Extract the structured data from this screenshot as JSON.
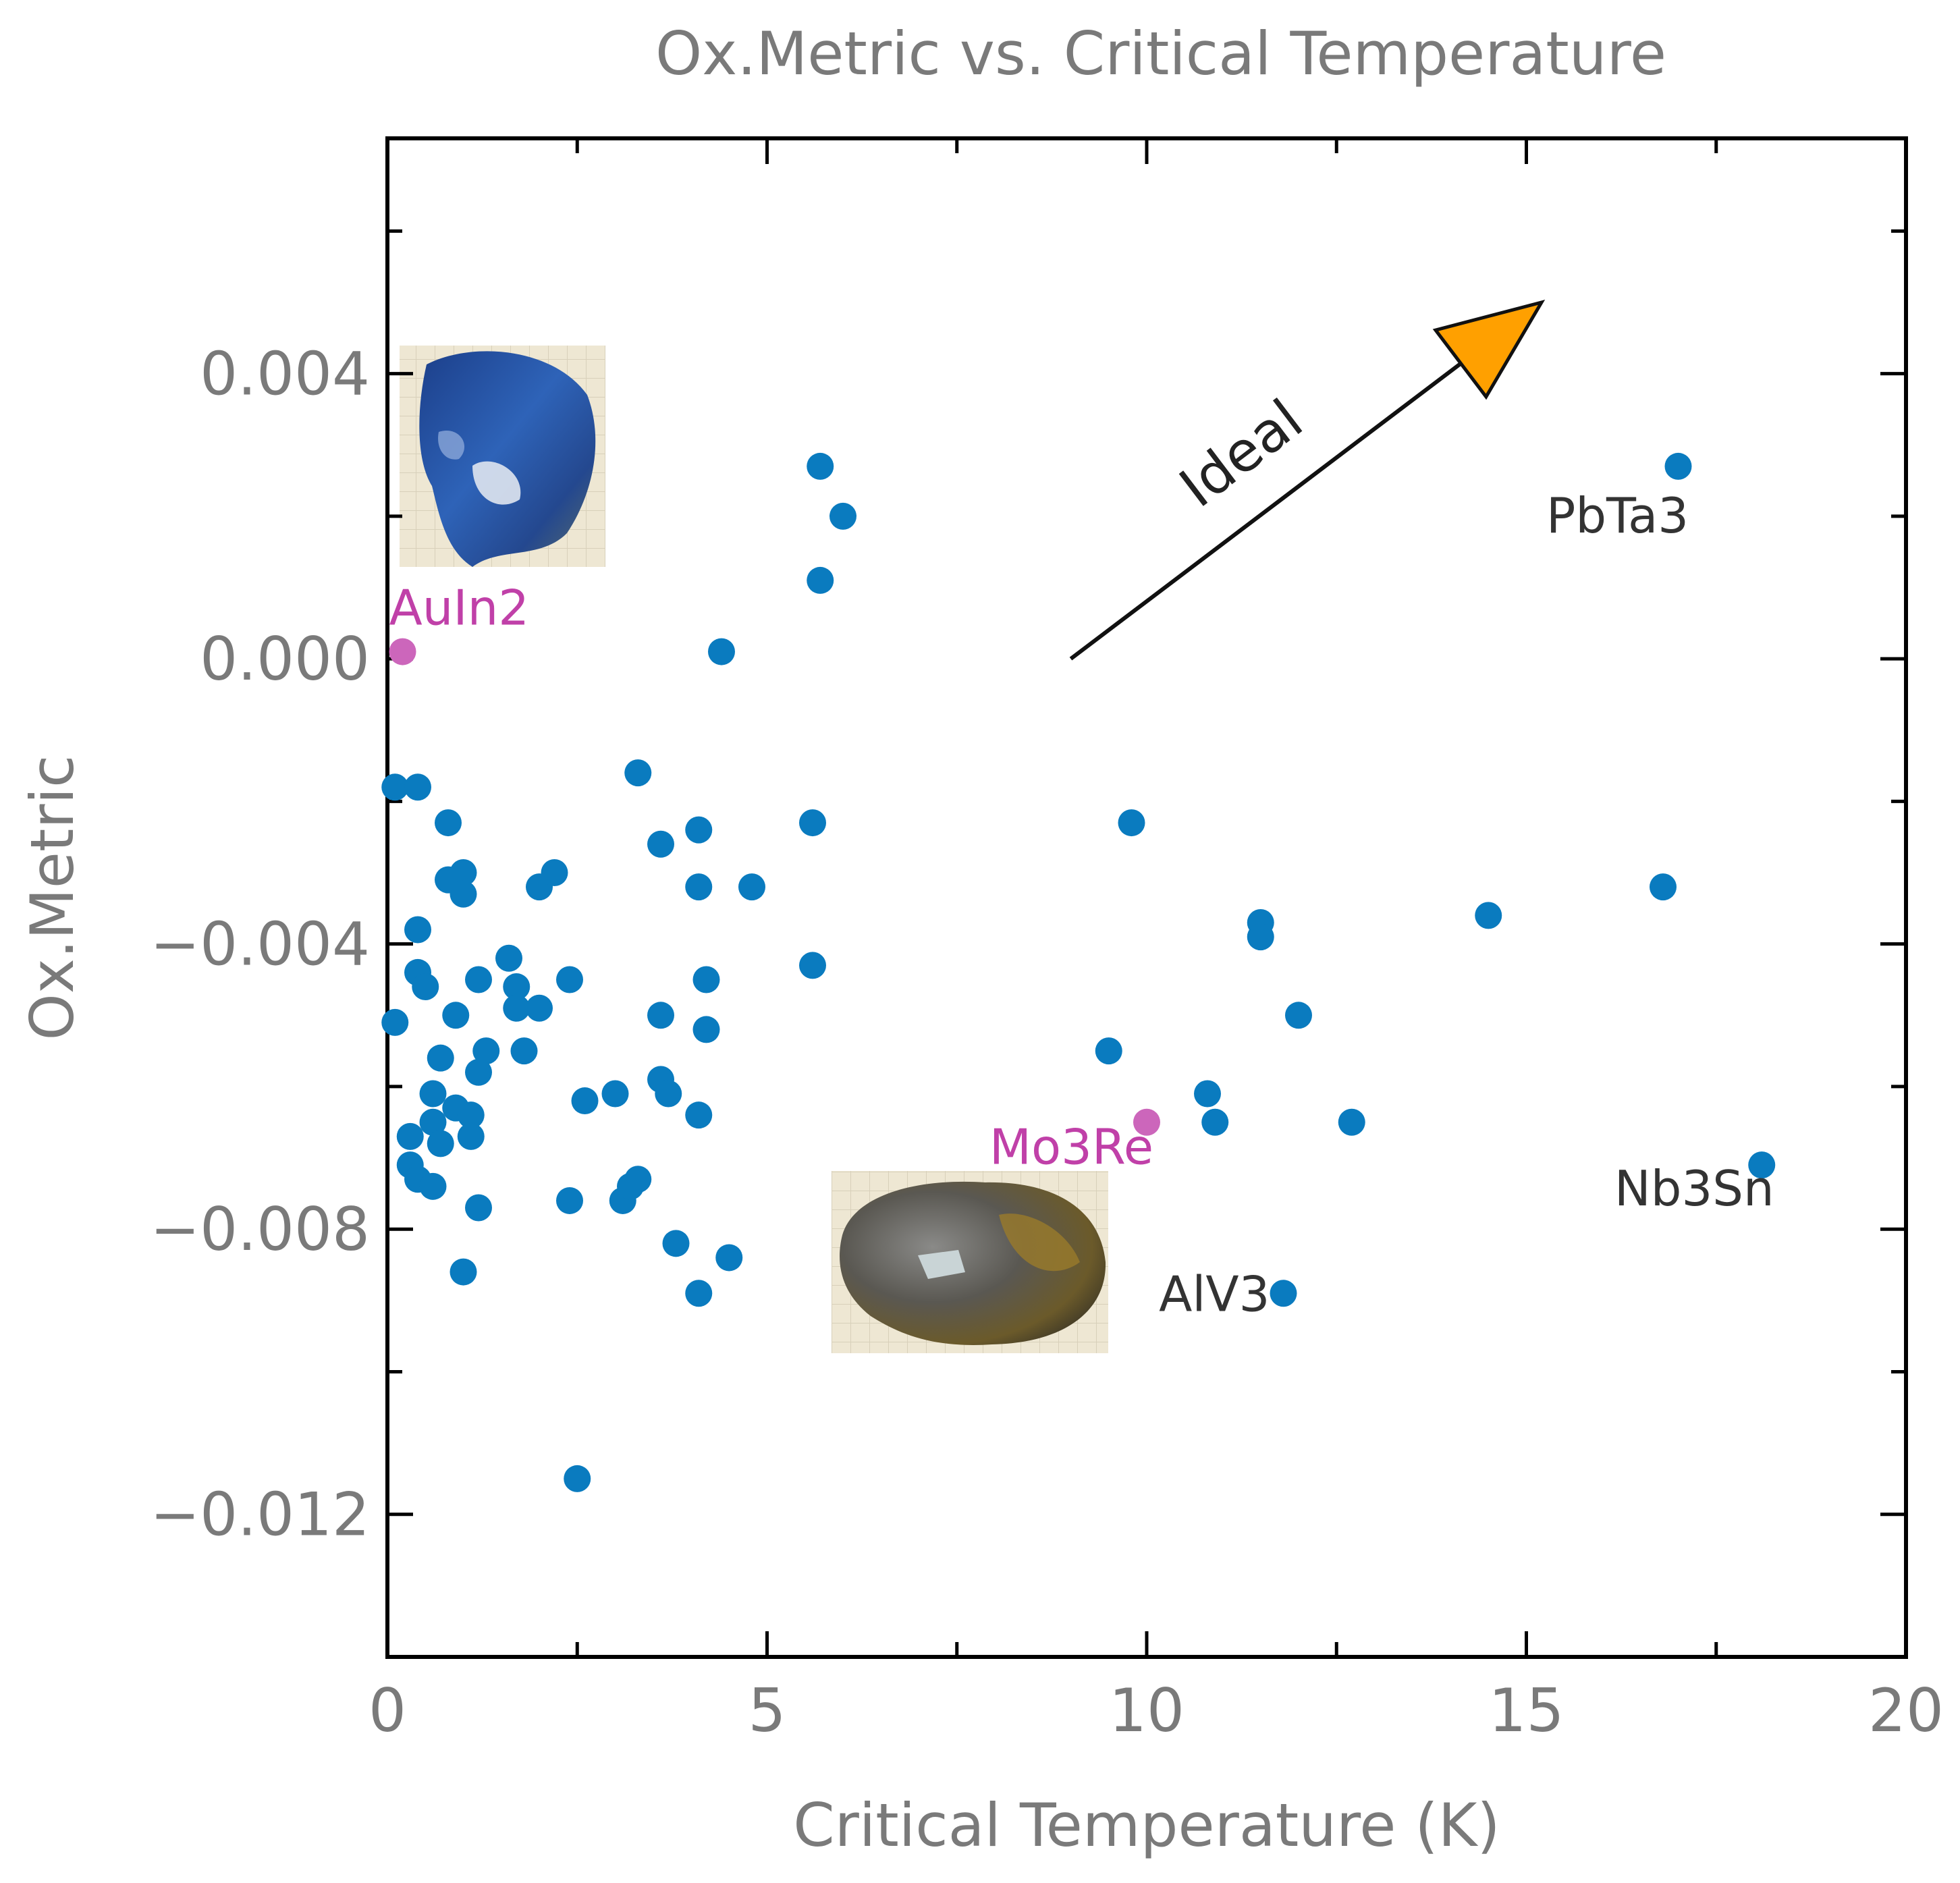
{
  "chart_data": {
    "type": "scatter",
    "title": "Ox.Metric vs. Critical Temperature",
    "xlabel": "Critical Temperature (K)",
    "ylabel": "Ox.Metric",
    "xlim": [
      0,
      20
    ],
    "ylim": [
      -0.014,
      0.0073
    ],
    "x_ticks": [
      0,
      5,
      10,
      15,
      20
    ],
    "x_tick_labels": [
      "0",
      "5",
      "10",
      "15",
      "20"
    ],
    "y_ticks": [
      -0.012,
      -0.008,
      -0.004,
      0.0,
      0.004
    ],
    "y_tick_labels": [
      "−0.012",
      "−0.008",
      "−0.004",
      "0.000",
      "0.004"
    ],
    "grid": false,
    "colors": {
      "points": "#0a7bbf",
      "highlight": "#cc66bb",
      "highlight_text": "#c040a8",
      "label_text": "#333333",
      "arrow_fill": "#ffa000"
    },
    "series": [
      {
        "points": [
          [
            0.1,
            -0.0018
          ],
          [
            0.4,
            -0.0018
          ],
          [
            0.1,
            -0.0051
          ],
          [
            0.8,
            -0.0023
          ],
          [
            0.8,
            -0.0031
          ],
          [
            0.9,
            -0.0031
          ],
          [
            1.0,
            -0.003
          ],
          [
            1.0,
            -0.0033
          ],
          [
            0.4,
            -0.0038
          ],
          [
            0.4,
            -0.0044
          ],
          [
            0.5,
            -0.0046
          ],
          [
            0.3,
            -0.0067
          ],
          [
            0.3,
            -0.0071
          ],
          [
            0.4,
            -0.0073
          ],
          [
            0.6,
            -0.0074
          ],
          [
            0.7,
            -0.0056
          ],
          [
            0.6,
            -0.0061
          ],
          [
            0.6,
            -0.0065
          ],
          [
            0.7,
            -0.0068
          ],
          [
            0.9,
            -0.005
          ],
          [
            0.9,
            -0.0063
          ],
          [
            1.0,
            -0.0086
          ],
          [
            1.2,
            -0.0045
          ],
          [
            1.2,
            -0.0058
          ],
          [
            1.3,
            -0.0055
          ],
          [
            1.1,
            -0.0064
          ],
          [
            1.1,
            -0.0067
          ],
          [
            1.2,
            -0.0077
          ],
          [
            1.6,
            -0.0042
          ],
          [
            1.7,
            -0.0046
          ],
          [
            1.7,
            -0.0049
          ],
          [
            1.8,
            -0.0055
          ],
          [
            2.0,
            -0.0049
          ],
          [
            2.0,
            -0.0032
          ],
          [
            2.2,
            -0.003
          ],
          [
            2.4,
            -0.0045
          ],
          [
            2.4,
            -0.0076
          ],
          [
            2.6,
            -0.0062
          ],
          [
            2.5,
            -0.0115
          ],
          [
            3.0,
            -0.0061
          ],
          [
            3.1,
            -0.0076
          ],
          [
            3.2,
            -0.0074
          ],
          [
            3.3,
            -0.0073
          ],
          [
            3.3,
            -0.0016
          ],
          [
            3.6,
            -0.0026
          ],
          [
            3.6,
            -0.005
          ],
          [
            3.6,
            -0.0059
          ],
          [
            3.7,
            -0.0061
          ],
          [
            3.8,
            -0.0082
          ],
          [
            4.1,
            -0.0024
          ],
          [
            4.1,
            -0.0032
          ],
          [
            4.1,
            -0.0064
          ],
          [
            4.1,
            -0.0089
          ],
          [
            4.2,
            -0.0045
          ],
          [
            4.2,
            -0.0052
          ],
          [
            4.4,
            0.0001
          ],
          [
            4.5,
            -0.0084
          ],
          [
            4.8,
            -0.0032
          ],
          [
            5.6,
            -0.0023
          ],
          [
            5.6,
            -0.0043
          ],
          [
            5.7,
            0.0011
          ],
          [
            5.7,
            0.0027
          ],
          [
            6.0,
            0.002
          ],
          [
            9.5,
            -0.0055
          ],
          [
            9.8,
            -0.0023
          ],
          [
            10.8,
            -0.0061
          ],
          [
            10.9,
            -0.0065
          ],
          [
            11.5,
            -0.0037
          ],
          [
            11.5,
            -0.0039
          ],
          [
            11.8,
            -0.0089
          ],
          [
            12.0,
            -0.005
          ],
          [
            12.7,
            -0.0065
          ],
          [
            14.5,
            -0.0036
          ],
          [
            16.8,
            -0.0032
          ],
          [
            17.0,
            0.0027
          ],
          [
            18.1,
            -0.0071
          ]
        ]
      }
    ],
    "highlighted": [
      {
        "label": "AuIn2",
        "x": 0.2,
        "y": 0.0001
      },
      {
        "label": "Mo3Re",
        "x": 10.0,
        "y": -0.0065
      }
    ],
    "labeled": [
      {
        "label": "PbTa3",
        "x": 17.0,
        "y": 0.0027
      },
      {
        "label": "Nb3Sn",
        "x": 18.1,
        "y": -0.0071
      },
      {
        "label": "AlV3",
        "x": 11.8,
        "y": -0.0089
      }
    ],
    "annotation": {
      "text": "Ideal",
      "from": [
        9.0,
        0.0
      ],
      "to": [
        15.2,
        0.005
      ]
    },
    "sample_photos": [
      {
        "near": "AuIn2",
        "icon": "blue-sample-photo"
      },
      {
        "near": "Mo3Re",
        "icon": "metallic-sample-photo"
      }
    ]
  }
}
